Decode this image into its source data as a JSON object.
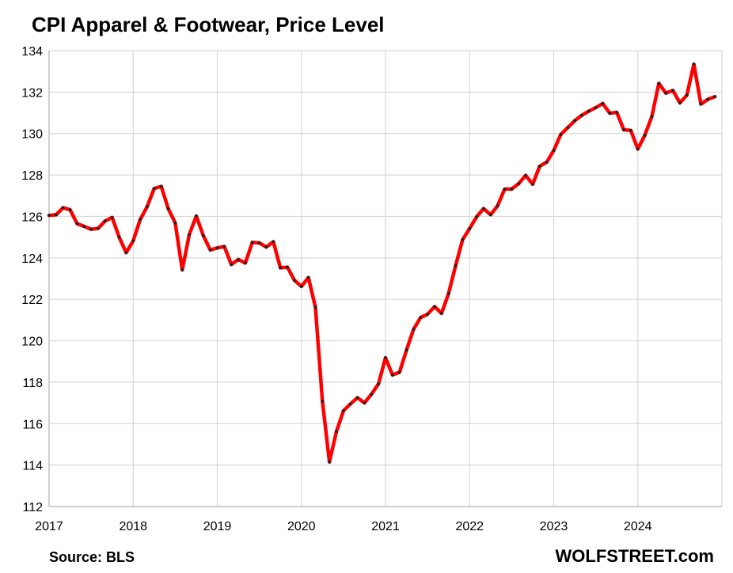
{
  "title": "CPI Apparel & Footwear, Price Level",
  "source": "Source: BLS",
  "brand": "WOLFSTREET.com",
  "colors": {
    "line": "#ff0000",
    "marker": "#222222",
    "grid": "#d9d9d9",
    "axis": "#bfbfbf"
  },
  "chart_data": {
    "type": "line",
    "title": "CPI Apparel & Footwear, Price Level",
    "xlabel": "",
    "ylabel": "",
    "xlim": [
      2017,
      2025
    ],
    "ylim": [
      112,
      134
    ],
    "x_ticks": [
      "2017",
      "2018",
      "2019",
      "2020",
      "2021",
      "2022",
      "2023",
      "2024"
    ],
    "y_ticks": [
      112,
      114,
      116,
      118,
      120,
      122,
      124,
      126,
      128,
      130,
      132,
      134
    ],
    "grid": true,
    "legend": "none",
    "start": "2017-01",
    "frequency": "monthly",
    "series": [
      {
        "values": [
          126.05,
          126.08,
          126.42,
          126.32,
          125.65,
          125.52,
          125.38,
          125.42,
          125.78,
          125.95,
          125.0,
          124.25,
          124.82,
          125.85,
          126.48,
          127.35,
          127.45,
          126.38,
          125.68,
          123.42,
          125.12,
          126.02,
          125.08,
          124.38,
          124.48,
          124.55,
          123.68,
          123.92,
          123.75,
          124.75,
          124.72,
          124.52,
          124.78,
          123.52,
          123.55,
          122.92,
          122.62,
          123.05,
          121.62,
          117.08,
          114.15,
          115.62,
          116.62,
          116.95,
          117.25,
          117.0,
          117.42,
          117.92,
          119.18,
          118.35,
          118.48,
          119.55,
          120.55,
          121.12,
          121.28,
          121.65,
          121.32,
          122.28,
          123.62,
          124.88,
          125.42,
          125.98,
          126.38,
          126.08,
          126.52,
          127.32,
          127.32,
          127.58,
          127.98,
          127.55,
          128.42,
          128.62,
          129.18,
          129.95,
          130.28,
          130.62,
          130.88,
          131.08,
          131.25,
          131.45,
          130.98,
          131.02,
          130.18,
          130.15,
          129.25,
          129.92,
          130.82,
          132.42,
          131.95,
          132.08,
          131.48,
          131.85,
          133.35,
          131.42,
          131.65,
          131.78
        ]
      }
    ]
  }
}
